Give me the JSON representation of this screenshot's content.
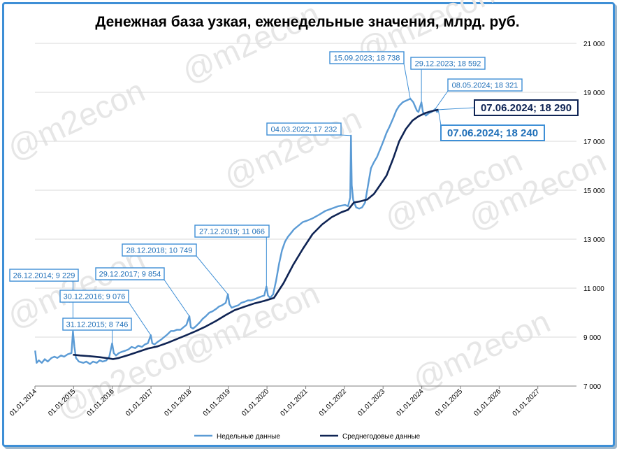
{
  "watermark": "@m2econ",
  "chart_data": {
    "type": "line",
    "title": "Денежная база узкая, еженедельные значения, млрд. руб.",
    "xlabel": "",
    "ylabel": "",
    "ylim": [
      7000,
      21000
    ],
    "yticks": [
      7000,
      9000,
      11000,
      13000,
      15000,
      17000,
      19000,
      21000
    ],
    "ytick_labels": [
      "7 000",
      "9 000",
      "11 000",
      "13 000",
      "15 000",
      "17 000",
      "19 000",
      "21 000"
    ],
    "xlim": [
      "2014-01-01",
      "2028-01-01"
    ],
    "xtick_labels": [
      "01.01.2014",
      "01.01.2015",
      "01.01.2016",
      "01.01.2017",
      "01.01.2018",
      "01.01.2019",
      "01.01.2020",
      "01.01.2021",
      "01.01.2022",
      "01.01.2023",
      "01.01.2024",
      "01.01.2025",
      "01.01.2026",
      "01.01.2027"
    ],
    "grid": "horizontal",
    "legend_placement": "bottom",
    "series": [
      {
        "name": "Недельные данные",
        "color": "#5b9bd5",
        "points": [
          [
            "2014-01-03",
            8450
          ],
          [
            "2014-01-17",
            7950
          ],
          [
            "2014-02-07",
            8050
          ],
          [
            "2014-03-07",
            7950
          ],
          [
            "2014-04-04",
            8100
          ],
          [
            "2014-05-02",
            8000
          ],
          [
            "2014-06-06",
            8150
          ],
          [
            "2014-07-04",
            8200
          ],
          [
            "2014-08-01",
            8150
          ],
          [
            "2014-09-05",
            8250
          ],
          [
            "2014-10-03",
            8200
          ],
          [
            "2014-11-07",
            8300
          ],
          [
            "2014-12-12",
            8350
          ],
          [
            "2014-12-26",
            9229
          ],
          [
            "2015-01-09",
            8600
          ],
          [
            "2015-01-23",
            8150
          ],
          [
            "2015-02-20",
            8000
          ],
          [
            "2015-04-03",
            7950
          ],
          [
            "2015-05-01",
            8000
          ],
          [
            "2015-06-05",
            7900
          ],
          [
            "2015-07-03",
            8000
          ],
          [
            "2015-08-07",
            7950
          ],
          [
            "2015-09-04",
            8050
          ],
          [
            "2015-10-02",
            8000
          ],
          [
            "2015-11-06",
            8050
          ],
          [
            "2015-12-04",
            8200
          ],
          [
            "2015-12-31",
            8746
          ],
          [
            "2016-01-15",
            8350
          ],
          [
            "2016-02-05",
            8250
          ],
          [
            "2016-03-04",
            8350
          ],
          [
            "2016-04-01",
            8400
          ],
          [
            "2016-05-06",
            8450
          ],
          [
            "2016-06-03",
            8500
          ],
          [
            "2016-07-01",
            8600
          ],
          [
            "2016-08-05",
            8550
          ],
          [
            "2016-09-02",
            8650
          ],
          [
            "2016-10-07",
            8600
          ],
          [
            "2016-11-04",
            8700
          ],
          [
            "2016-12-02",
            8750
          ],
          [
            "2016-12-30",
            9076
          ],
          [
            "2017-01-13",
            8750
          ],
          [
            "2017-02-03",
            8700
          ],
          [
            "2017-03-03",
            8800
          ],
          [
            "2017-04-07",
            8900
          ],
          [
            "2017-05-05",
            9000
          ],
          [
            "2017-06-02",
            9100
          ],
          [
            "2017-07-07",
            9250
          ],
          [
            "2017-08-04",
            9250
          ],
          [
            "2017-09-01",
            9300
          ],
          [
            "2017-10-06",
            9300
          ],
          [
            "2017-11-03",
            9400
          ],
          [
            "2017-12-01",
            9500
          ],
          [
            "2017-12-29",
            9854
          ],
          [
            "2018-01-12",
            9400
          ],
          [
            "2018-02-02",
            9350
          ],
          [
            "2018-03-02",
            9450
          ],
          [
            "2018-04-06",
            9600
          ],
          [
            "2018-05-04",
            9750
          ],
          [
            "2018-06-01",
            9850
          ],
          [
            "2018-07-06",
            10000
          ],
          [
            "2018-08-03",
            10050
          ],
          [
            "2018-09-07",
            10150
          ],
          [
            "2018-10-05",
            10250
          ],
          [
            "2018-11-02",
            10300
          ],
          [
            "2018-12-07",
            10400
          ],
          [
            "2018-12-28",
            10749
          ],
          [
            "2019-01-11",
            10350
          ],
          [
            "2019-02-01",
            10200
          ],
          [
            "2019-03-01",
            10250
          ],
          [
            "2019-04-05",
            10300
          ],
          [
            "2019-05-03",
            10400
          ],
          [
            "2019-06-07",
            10450
          ],
          [
            "2019-07-05",
            10500
          ],
          [
            "2019-08-02",
            10500
          ],
          [
            "2019-09-06",
            10550
          ],
          [
            "2019-10-04",
            10600
          ],
          [
            "2019-11-01",
            10650
          ],
          [
            "2019-12-06",
            10700
          ],
          [
            "2019-12-27",
            11066
          ],
          [
            "2020-01-10",
            10700
          ],
          [
            "2020-01-31",
            10600
          ],
          [
            "2020-02-28",
            10750
          ],
          [
            "2020-03-27",
            11300
          ],
          [
            "2020-04-24",
            12000
          ],
          [
            "2020-05-22",
            12550
          ],
          [
            "2020-06-19",
            12900
          ],
          [
            "2020-07-17",
            13100
          ],
          [
            "2020-08-14",
            13250
          ],
          [
            "2020-09-11",
            13400
          ],
          [
            "2020-10-09",
            13500
          ],
          [
            "2020-11-06",
            13600
          ],
          [
            "2020-12-04",
            13700
          ],
          [
            "2021-01-08",
            13750
          ],
          [
            "2021-03-05",
            13850
          ],
          [
            "2021-05-07",
            14000
          ],
          [
            "2021-07-02",
            14150
          ],
          [
            "2021-09-03",
            14250
          ],
          [
            "2021-11-05",
            14350
          ],
          [
            "2022-01-07",
            14400
          ],
          [
            "2022-02-04",
            14350
          ],
          [
            "2022-02-25",
            14700
          ],
          [
            "2022-03-04",
            17232
          ],
          [
            "2022-03-11",
            15200
          ],
          [
            "2022-03-25",
            14600
          ],
          [
            "2022-04-22",
            14300
          ],
          [
            "2022-05-20",
            14250
          ],
          [
            "2022-06-17",
            14300
          ],
          [
            "2022-07-15",
            14500
          ],
          [
            "2022-08-12",
            15200
          ],
          [
            "2022-09-09",
            15900
          ],
          [
            "2022-10-07",
            16150
          ],
          [
            "2022-11-04",
            16350
          ],
          [
            "2022-12-02",
            16650
          ],
          [
            "2022-12-30",
            16950
          ],
          [
            "2023-02-03",
            17350
          ],
          [
            "2023-03-03",
            17600
          ],
          [
            "2023-04-07",
            17950
          ],
          [
            "2023-05-05",
            18250
          ],
          [
            "2023-06-02",
            18450
          ],
          [
            "2023-07-07",
            18600
          ],
          [
            "2023-09-15",
            18738
          ],
          [
            "2023-10-13",
            18600
          ],
          [
            "2023-11-17",
            18250
          ],
          [
            "2023-12-01",
            18200
          ],
          [
            "2023-12-29",
            18592
          ],
          [
            "2024-01-12",
            18200
          ],
          [
            "2024-02-09",
            18050
          ],
          [
            "2024-03-08",
            18150
          ],
          [
            "2024-04-05",
            18200
          ],
          [
            "2024-05-08",
            18321
          ],
          [
            "2024-05-24",
            18200
          ],
          [
            "2024-06-07",
            18240
          ]
        ]
      },
      {
        "name": "Среднегодовые данные",
        "color": "#0f2454",
        "points": [
          [
            "2014-12-26",
            8280
          ],
          [
            "2015-03-06",
            8250
          ],
          [
            "2015-06-05",
            8220
          ],
          [
            "2015-09-04",
            8180
          ],
          [
            "2015-12-04",
            8130
          ],
          [
            "2016-01-08",
            8100
          ],
          [
            "2016-03-04",
            8150
          ],
          [
            "2016-06-03",
            8270
          ],
          [
            "2016-09-02",
            8400
          ],
          [
            "2016-12-02",
            8530
          ],
          [
            "2017-03-03",
            8620
          ],
          [
            "2017-06-02",
            8760
          ],
          [
            "2017-09-01",
            8920
          ],
          [
            "2017-12-01",
            9080
          ],
          [
            "2018-03-02",
            9250
          ],
          [
            "2018-06-01",
            9430
          ],
          [
            "2018-09-07",
            9660
          ],
          [
            "2018-12-07",
            9900
          ],
          [
            "2019-03-01",
            10100
          ],
          [
            "2019-06-07",
            10250
          ],
          [
            "2019-09-06",
            10380
          ],
          [
            "2019-12-06",
            10480
          ],
          [
            "2020-03-06",
            10600
          ],
          [
            "2020-06-05",
            11200
          ],
          [
            "2020-09-04",
            11950
          ],
          [
            "2020-12-04",
            12600
          ],
          [
            "2021-03-05",
            13200
          ],
          [
            "2021-06-04",
            13600
          ],
          [
            "2021-09-03",
            13900
          ],
          [
            "2021-12-03",
            14100
          ],
          [
            "2022-02-04",
            14200
          ],
          [
            "2022-03-04",
            14350
          ],
          [
            "2022-04-01",
            14500
          ],
          [
            "2022-06-03",
            14550
          ],
          [
            "2022-08-05",
            14620
          ],
          [
            "2022-10-07",
            14850
          ],
          [
            "2022-12-02",
            15200
          ],
          [
            "2023-02-03",
            15600
          ],
          [
            "2023-04-07",
            16300
          ],
          [
            "2023-06-02",
            17000
          ],
          [
            "2023-08-04",
            17500
          ],
          [
            "2023-10-06",
            17850
          ],
          [
            "2023-12-01",
            18020
          ],
          [
            "2024-02-02",
            18150
          ],
          [
            "2024-04-05",
            18230
          ],
          [
            "2024-06-07",
            18290
          ]
        ]
      }
    ],
    "annotations": [
      {
        "text": "26.12.2014; 9 229",
        "series": 0,
        "x": "2014-12-26",
        "y": 9229,
        "style": "small"
      },
      {
        "text": "31.12.2015; 8 746",
        "series": 0,
        "x": "2015-12-31",
        "y": 8746,
        "style": "small"
      },
      {
        "text": "30.12.2016; 9 076",
        "series": 0,
        "x": "2016-12-30",
        "y": 9076,
        "style": "small"
      },
      {
        "text": "29.12.2017; 9 854",
        "series": 0,
        "x": "2017-12-29",
        "y": 9854,
        "style": "small"
      },
      {
        "text": "28.12.2018; 10 749",
        "series": 0,
        "x": "2018-12-28",
        "y": 10749,
        "style": "small"
      },
      {
        "text": "27.12.2019; 11 066",
        "series": 0,
        "x": "2019-12-27",
        "y": 11066,
        "style": "small"
      },
      {
        "text": "04.03.2022; 17 232",
        "series": 0,
        "x": "2022-03-04",
        "y": 17232,
        "style": "small"
      },
      {
        "text": "15.09.2023; 18 738",
        "series": 0,
        "x": "2023-09-15",
        "y": 18738,
        "style": "small"
      },
      {
        "text": "29.12.2023; 18 592",
        "series": 0,
        "x": "2023-12-29",
        "y": 18592,
        "style": "small"
      },
      {
        "text": "08.05.2024; 18 321",
        "series": 0,
        "x": "2024-05-08",
        "y": 18321,
        "style": "small"
      },
      {
        "text": "07.06.2024; 18 290",
        "series": 1,
        "x": "2024-06-07",
        "y": 18290,
        "style": "big-dark"
      },
      {
        "text": "07.06.2024; 18 240",
        "series": 0,
        "x": "2024-06-07",
        "y": 18240,
        "style": "big-blue"
      }
    ]
  }
}
